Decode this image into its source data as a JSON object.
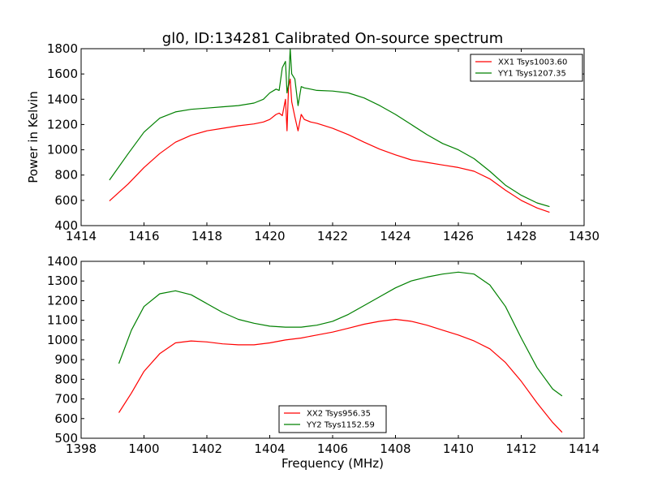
{
  "figure": {
    "background": "#ffffff",
    "axes_color": "#000000"
  },
  "chart_data": [
    {
      "type": "line",
      "title": "gl0, ID:134281 Calibrated On-source spectrum",
      "xlabel": "",
      "ylabel": "Power in Kelvin",
      "xlim": [
        1414,
        1430
      ],
      "ylim": [
        400,
        1800
      ],
      "xticks": [
        1414,
        1416,
        1418,
        1420,
        1422,
        1424,
        1426,
        1428,
        1430
      ],
      "yticks": [
        400,
        600,
        800,
        1000,
        1200,
        1400,
        1600,
        1800
      ],
      "grid": false,
      "legend_position": "top-right",
      "series": [
        {
          "name": "XX1 Tsys1003.60",
          "color": "#ff0000",
          "x": [
            1414.9,
            1415.5,
            1416.0,
            1416.5,
            1417.0,
            1417.5,
            1418.0,
            1418.5,
            1419.0,
            1419.5,
            1419.8,
            1420.0,
            1420.2,
            1420.3,
            1420.4,
            1420.5,
            1420.55,
            1420.6,
            1420.65,
            1420.7,
            1420.8,
            1420.9,
            1421.0,
            1421.1,
            1421.3,
            1421.5,
            1422.0,
            1422.5,
            1423.0,
            1423.5,
            1424.0,
            1424.5,
            1425.0,
            1425.5,
            1426.0,
            1426.5,
            1427.0,
            1427.5,
            1428.0,
            1428.5,
            1428.9
          ],
          "y": [
            595,
            730,
            860,
            970,
            1060,
            1115,
            1150,
            1170,
            1190,
            1205,
            1220,
            1240,
            1280,
            1290,
            1270,
            1400,
            1150,
            1500,
            1560,
            1380,
            1260,
            1150,
            1280,
            1240,
            1220,
            1210,
            1170,
            1120,
            1060,
            1005,
            960,
            920,
            900,
            880,
            860,
            830,
            770,
            680,
            600,
            540,
            505
          ]
        },
        {
          "name": "YY1 Tsys1207.35",
          "color": "#008000",
          "x": [
            1414.9,
            1415.5,
            1416.0,
            1416.5,
            1417.0,
            1417.5,
            1418.0,
            1418.5,
            1419.0,
            1419.5,
            1419.8,
            1420.0,
            1420.2,
            1420.3,
            1420.4,
            1420.5,
            1420.55,
            1420.6,
            1420.65,
            1420.7,
            1420.8,
            1420.9,
            1421.0,
            1421.1,
            1421.3,
            1421.5,
            1422.0,
            1422.5,
            1423.0,
            1423.5,
            1424.0,
            1424.5,
            1425.0,
            1425.5,
            1426.0,
            1426.5,
            1427.0,
            1427.5,
            1428.0,
            1428.5,
            1428.9
          ],
          "y": [
            760,
            970,
            1140,
            1250,
            1300,
            1320,
            1330,
            1340,
            1350,
            1370,
            1400,
            1450,
            1480,
            1470,
            1650,
            1700,
            1450,
            1520,
            1800,
            1600,
            1560,
            1350,
            1500,
            1490,
            1480,
            1470,
            1465,
            1450,
            1410,
            1350,
            1280,
            1200,
            1120,
            1050,
            1000,
            930,
            830,
            720,
            640,
            580,
            550
          ]
        }
      ]
    },
    {
      "type": "line",
      "title": "",
      "xlabel": "Frequency (MHz)",
      "ylabel": "",
      "xlim": [
        1398,
        1414
      ],
      "ylim": [
        500,
        1400
      ],
      "xticks": [
        1398,
        1400,
        1402,
        1404,
        1406,
        1408,
        1410,
        1412,
        1414
      ],
      "yticks": [
        500,
        600,
        700,
        800,
        900,
        1000,
        1100,
        1200,
        1300,
        1400
      ],
      "grid": false,
      "legend_position": "bottom-center",
      "series": [
        {
          "name": "XX2 Tsys956.35",
          "color": "#ff0000",
          "x": [
            1399.2,
            1399.6,
            1400.0,
            1400.5,
            1401.0,
            1401.5,
            1402.0,
            1402.5,
            1403.0,
            1403.5,
            1404.0,
            1404.5,
            1405.0,
            1405.5,
            1406.0,
            1406.5,
            1407.0,
            1407.5,
            1408.0,
            1408.5,
            1409.0,
            1409.5,
            1410.0,
            1410.5,
            1411.0,
            1411.5,
            1412.0,
            1412.5,
            1413.0,
            1413.3
          ],
          "y": [
            630,
            730,
            840,
            930,
            985,
            995,
            990,
            980,
            975,
            975,
            985,
            1000,
            1010,
            1025,
            1040,
            1060,
            1080,
            1095,
            1105,
            1095,
            1075,
            1050,
            1025,
            995,
            955,
            885,
            790,
            680,
            580,
            530
          ]
        },
        {
          "name": "YY2 Tsys1152.59",
          "color": "#008000",
          "x": [
            1399.2,
            1399.6,
            1400.0,
            1400.5,
            1401.0,
            1401.5,
            1402.0,
            1402.5,
            1403.0,
            1403.5,
            1404.0,
            1404.5,
            1405.0,
            1405.5,
            1406.0,
            1406.5,
            1407.0,
            1407.5,
            1408.0,
            1408.5,
            1409.0,
            1409.5,
            1410.0,
            1410.5,
            1411.0,
            1411.5,
            1412.0,
            1412.5,
            1413.0,
            1413.3
          ],
          "y": [
            880,
            1050,
            1170,
            1235,
            1250,
            1230,
            1185,
            1140,
            1105,
            1085,
            1070,
            1065,
            1065,
            1075,
            1095,
            1130,
            1175,
            1220,
            1265,
            1300,
            1320,
            1335,
            1345,
            1335,
            1280,
            1170,
            1010,
            860,
            750,
            715
          ]
        }
      ]
    }
  ]
}
